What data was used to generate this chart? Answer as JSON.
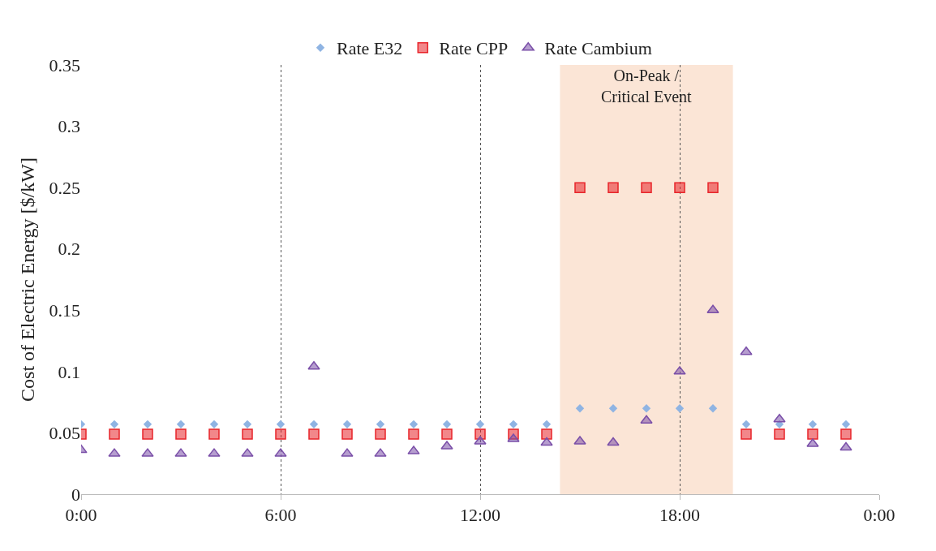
{
  "chart_data": {
    "type": "scatter",
    "ylabel": "Cost of Electric Energy [$/kW]",
    "x": [
      0,
      1,
      2,
      3,
      4,
      5,
      6,
      7,
      8,
      9,
      10,
      11,
      12,
      13,
      14,
      15,
      16,
      17,
      18,
      19,
      20,
      21,
      22,
      23
    ],
    "series": [
      {
        "name": "Rate E32",
        "color": "#8fb4e3",
        "marker": "diamond",
        "values": [
          0.057,
          0.057,
          0.057,
          0.057,
          0.057,
          0.057,
          0.057,
          0.057,
          0.057,
          0.057,
          0.057,
          0.057,
          0.057,
          0.057,
          0.057,
          0.07,
          0.07,
          0.07,
          0.07,
          0.07,
          0.057,
          0.057,
          0.057,
          0.057
        ]
      },
      {
        "name": "Rate CPP",
        "color": "#e8242a",
        "marker": "square",
        "values": [
          0.049,
          0.049,
          0.049,
          0.049,
          0.049,
          0.049,
          0.049,
          0.049,
          0.049,
          0.049,
          0.049,
          0.049,
          0.049,
          0.049,
          0.049,
          0.25,
          0.25,
          0.25,
          0.25,
          0.25,
          0.049,
          0.049,
          0.049,
          0.049
        ]
      },
      {
        "name": "Rate Cambium",
        "color": "#7a4fa8",
        "marker": "triangle",
        "values": [
          0.036,
          0.033,
          0.033,
          0.033,
          0.033,
          0.033,
          0.033,
          0.104,
          0.033,
          0.033,
          0.035,
          0.039,
          0.043,
          0.045,
          0.042,
          0.043,
          0.042,
          0.06,
          0.1,
          0.15,
          0.116,
          0.061,
          0.041,
          0.038
        ]
      }
    ],
    "xlim": [
      0,
      24
    ],
    "xticks": [
      {
        "value": 0,
        "label": "0:00"
      },
      {
        "value": 6,
        "label": "6:00"
      },
      {
        "value": 12,
        "label": "12:00"
      },
      {
        "value": 18,
        "label": "18:00"
      },
      {
        "value": 24,
        "label": "0:00"
      }
    ],
    "ylim": [
      0,
      0.35
    ],
    "yticks": [
      0,
      0.05,
      0.1,
      0.15,
      0.2,
      0.25,
      0.3,
      0.35
    ],
    "grid": "x",
    "line_style": "dotted",
    "legend": "top",
    "bands": [
      {
        "axis": "x",
        "from": 14.4,
        "to": 19.6,
        "label": "On-Peak /\nCritical Event",
        "color": "#fbe5d6"
      }
    ]
  }
}
